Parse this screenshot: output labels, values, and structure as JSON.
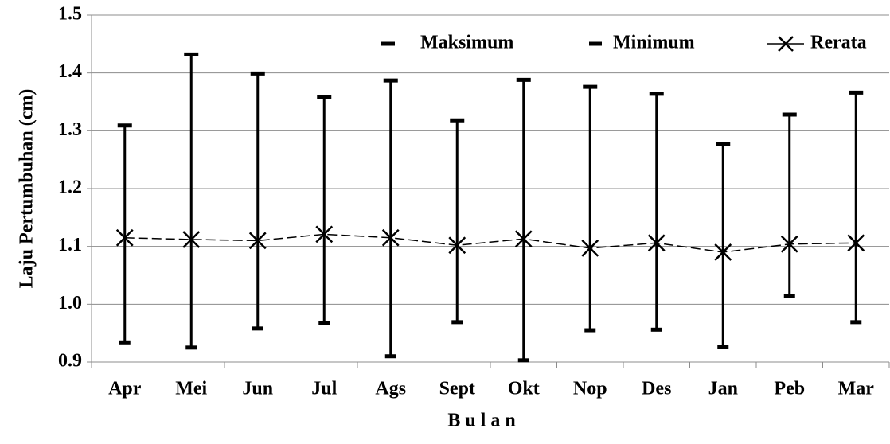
{
  "chart_data": {
    "type": "range-line",
    "x_label": "B u l a n",
    "y_label": "Laju Pertumbuhan (cm)",
    "categories": [
      "Apr",
      "Mei",
      "Jun",
      "Jul",
      "Ags",
      "Sept",
      "Okt",
      "Nop",
      "Des",
      "Jan",
      "Peb",
      "Mar"
    ],
    "series": [
      {
        "name": "Maksimum",
        "color": "#000000",
        "values": [
          1.309,
          1.432,
          1.399,
          1.358,
          1.387,
          1.318,
          1.388,
          1.376,
          1.364,
          1.277,
          1.328,
          1.366
        ]
      },
      {
        "name": "Minimum",
        "color": "#000000",
        "values": [
          0.934,
          0.925,
          0.958,
          0.967,
          0.91,
          0.969,
          0.903,
          0.955,
          0.956,
          0.926,
          1.014,
          0.969
        ]
      },
      {
        "name": "Rerata",
        "color": "#000000",
        "values": [
          1.115,
          1.112,
          1.11,
          1.121,
          1.115,
          1.102,
          1.113,
          1.097,
          1.106,
          1.09,
          1.104,
          1.106
        ]
      }
    ],
    "ylim": [
      0.9,
      1.5
    ],
    "yticks": [
      0.9,
      {
        "value": 1,
        "label": "1.0"
      },
      1.1,
      1.2,
      1.3,
      1.4,
      1.5
    ],
    "grid": true,
    "legend": "top-right"
  }
}
